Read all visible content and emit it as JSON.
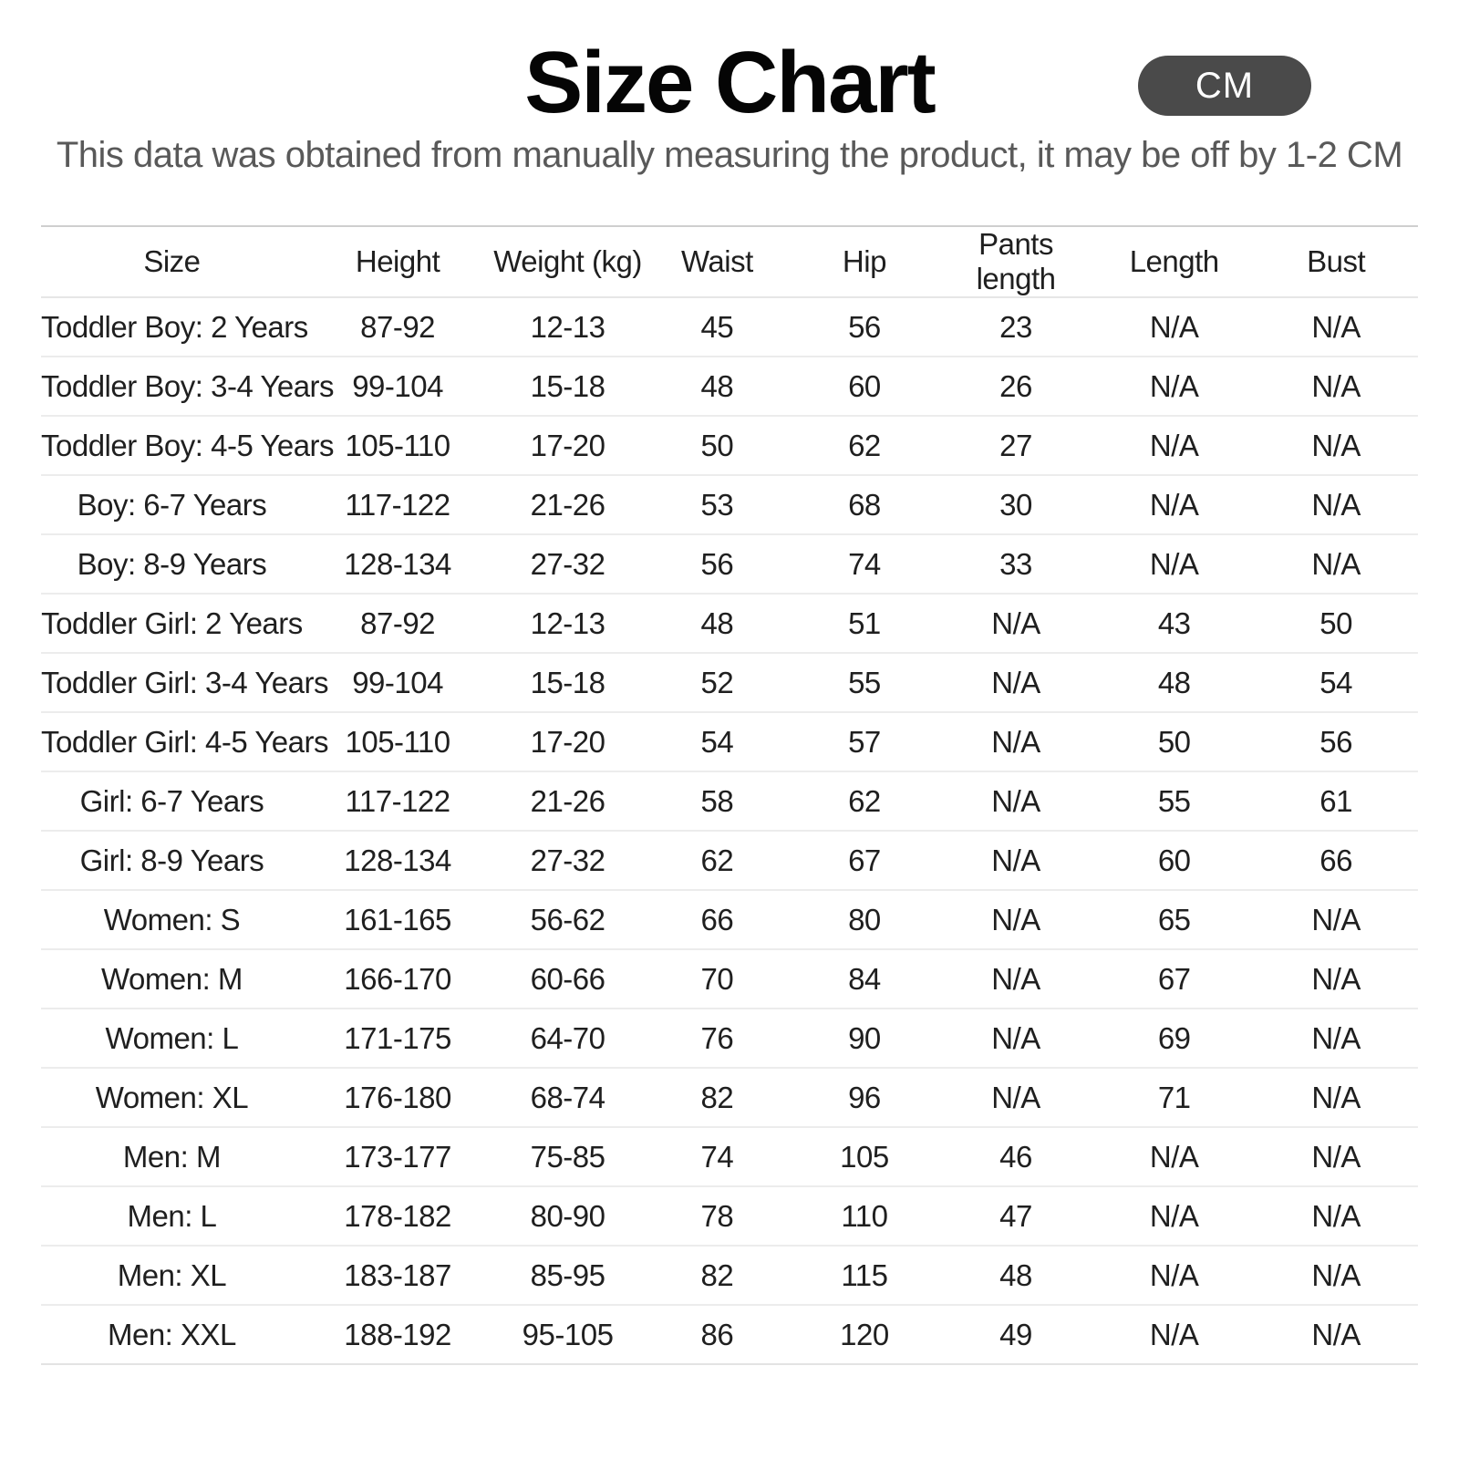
{
  "header": {
    "title": "Size Chart",
    "unit_badge": "CM",
    "subtitle": "This data was obtained from manually measuring the product, it may be off by 1-2 CM",
    "badge_color": "#4a4a4a",
    "subtitle_color": "#595959"
  },
  "chart_data": {
    "type": "table",
    "title": "Size Chart",
    "unit": "CM",
    "columns": [
      "Size",
      "Height",
      "Weight (kg)",
      "Waist",
      "Hip",
      "Pants length",
      "Length",
      "Bust"
    ],
    "rows": [
      [
        "Toddler Boy: 2 Years",
        "87-92",
        "12-13",
        "45",
        "56",
        "23",
        "N/A",
        "N/A"
      ],
      [
        "Toddler Boy: 3-4 Years",
        "99-104",
        "15-18",
        "48",
        "60",
        "26",
        "N/A",
        "N/A"
      ],
      [
        "Toddler Boy: 4-5 Years",
        "105-110",
        "17-20",
        "50",
        "62",
        "27",
        "N/A",
        "N/A"
      ],
      [
        "Boy: 6-7 Years",
        "117-122",
        "21-26",
        "53",
        "68",
        "30",
        "N/A",
        "N/A"
      ],
      [
        "Boy: 8-9 Years",
        "128-134",
        "27-32",
        "56",
        "74",
        "33",
        "N/A",
        "N/A"
      ],
      [
        "Toddler Girl: 2 Years",
        "87-92",
        "12-13",
        "48",
        "51",
        "N/A",
        "43",
        "50"
      ],
      [
        "Toddler Girl: 3-4 Years",
        "99-104",
        "15-18",
        "52",
        "55",
        "N/A",
        "48",
        "54"
      ],
      [
        "Toddler Girl: 4-5 Years",
        "105-110",
        "17-20",
        "54",
        "57",
        "N/A",
        "50",
        "56"
      ],
      [
        "Girl: 6-7 Years",
        "117-122",
        "21-26",
        "58",
        "62",
        "N/A",
        "55",
        "61"
      ],
      [
        "Girl: 8-9 Years",
        "128-134",
        "27-32",
        "62",
        "67",
        "N/A",
        "60",
        "66"
      ],
      [
        "Women: S",
        "161-165",
        "56-62",
        "66",
        "80",
        "N/A",
        "65",
        "N/A"
      ],
      [
        "Women: M",
        "166-170",
        "60-66",
        "70",
        "84",
        "N/A",
        "67",
        "N/A"
      ],
      [
        "Women: L",
        "171-175",
        "64-70",
        "76",
        "90",
        "N/A",
        "69",
        "N/A"
      ],
      [
        "Women: XL",
        "176-180",
        "68-74",
        "82",
        "96",
        "N/A",
        "71",
        "N/A"
      ],
      [
        "Men: M",
        "173-177",
        "75-85",
        "74",
        "105",
        "46",
        "N/A",
        "N/A"
      ],
      [
        "Men: L",
        "178-182",
        "80-90",
        "78",
        "110",
        "47",
        "N/A",
        "N/A"
      ],
      [
        "Men: XL",
        "183-187",
        "85-95",
        "82",
        "115",
        "48",
        "N/A",
        "N/A"
      ],
      [
        "Men: XXL",
        "188-192",
        "95-105",
        "86",
        "120",
        "49",
        "N/A",
        "N/A"
      ]
    ]
  }
}
